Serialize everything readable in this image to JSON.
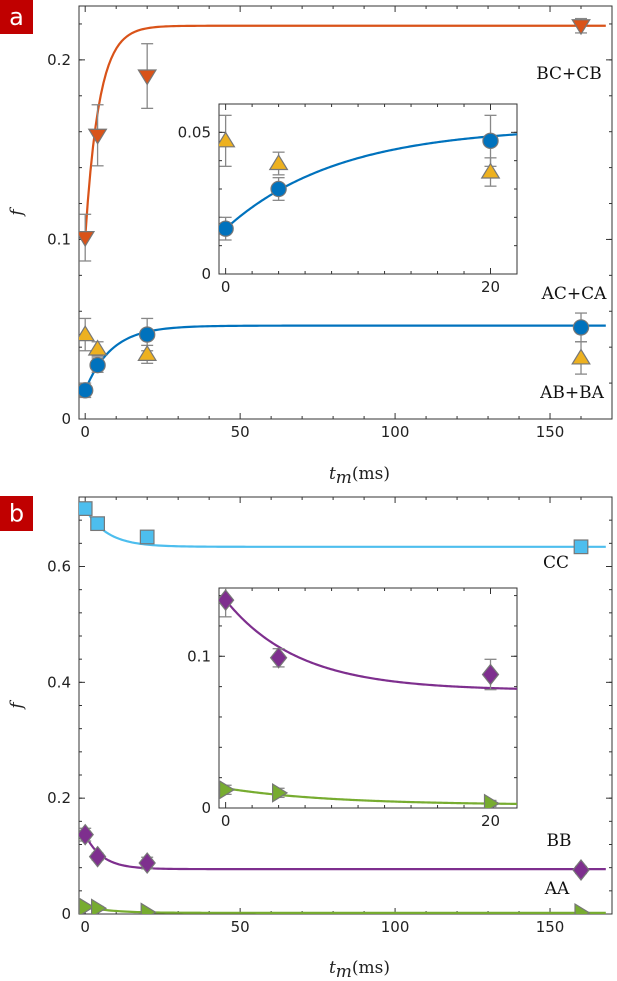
{
  "chart_data": [
    {
      "panel": "a",
      "type": "scatter",
      "xlabel": "t_m",
      "xunit": "(ms)",
      "ylabel": "f",
      "xlim": [
        -2,
        170
      ],
      "ylim": [
        0,
        0.23
      ],
      "xticks": [
        0,
        50,
        100,
        150
      ],
      "yticks": [
        0,
        0.1,
        0.2
      ],
      "ytick_labels": [
        "0",
        "0.1",
        "0.2"
      ],
      "series": [
        {
          "name": "BC+CB",
          "marker": "triangle-down",
          "color": "#D95319",
          "x": [
            0,
            4,
            20,
            160
          ],
          "y": [
            0.101,
            0.158,
            0.191,
            0.219
          ],
          "err": [
            0.013,
            0.017,
            0.018,
            0.004
          ],
          "fit": {
            "a": 0.219,
            "b": 0.118,
            "tau": 4.5
          }
        },
        {
          "name": "AB+BA",
          "marker": "circle",
          "color": "#0072BD",
          "x": [
            0,
            4,
            20,
            160
          ],
          "y": [
            0.016,
            0.03,
            0.047,
            0.051
          ],
          "err": [
            0.004,
            0.004,
            0.009,
            0.008
          ],
          "fit": {
            "a": 0.052,
            "b": 0.036,
            "tau": 8.5
          }
        },
        {
          "name": "AC+CA",
          "marker": "triangle-up",
          "color": "#EDB120",
          "x": [
            0,
            4,
            20,
            160
          ],
          "y": [
            0.047,
            0.039,
            0.036,
            0.034
          ],
          "err": [
            0.009,
            0.004,
            0.005,
            0.009
          ],
          "fit": null
        }
      ],
      "inset": {
        "xlim": [
          -0.5,
          22
        ],
        "ylim": [
          0,
          0.06
        ],
        "xticks": [
          0,
          20
        ],
        "yticks": [
          0,
          0.05
        ],
        "ytick_labels": [
          "0",
          "0.05"
        ],
        "series_names": [
          "AB+BA",
          "AC+CA"
        ]
      }
    },
    {
      "panel": "b",
      "type": "scatter",
      "xlabel": "t_m",
      "xunit": "(ms)",
      "ylabel": "f",
      "xlim": [
        -2,
        170
      ],
      "ylim": [
        0,
        0.72
      ],
      "xticks": [
        0,
        50,
        100,
        150
      ],
      "yticks": [
        0,
        0.2,
        0.4,
        0.6
      ],
      "ytick_labels": [
        "0",
        "0.2",
        "0.4",
        "0.6"
      ],
      "series": [
        {
          "name": "CC",
          "marker": "square",
          "color": "#4DBEEE",
          "x": [
            0,
            4,
            20,
            160
          ],
          "y": [
            0.7,
            0.674,
            0.651,
            0.634
          ],
          "err": [
            0.011,
            0.009,
            0.011,
            0.008
          ],
          "fit": {
            "a": 0.634,
            "b": -0.066,
            "tau": 7
          }
        },
        {
          "name": "BB",
          "marker": "diamond",
          "color": "#7E2F8E",
          "x": [
            0,
            4,
            20,
            160
          ],
          "y": [
            0.137,
            0.099,
            0.088,
            0.076
          ],
          "err": [
            0.011,
            0.006,
            0.01,
            0.006
          ],
          "fit": {
            "a": 0.0775,
            "b": -0.0595,
            "tau": 5.5
          }
        },
        {
          "name": "AA",
          "marker": "triangle-right",
          "color": "#77AC30",
          "x": [
            0,
            4,
            20,
            160
          ],
          "y": [
            0.012,
            0.01,
            0.003,
            0.002
          ],
          "err": [
            0.003,
            0.003,
            0.002,
            0.001
          ],
          "fit": {
            "a": 0.002,
            "b": -0.011,
            "tau": 8
          }
        }
      ],
      "inset": {
        "xlim": [
          -0.5,
          22
        ],
        "ylim": [
          0,
          0.145
        ],
        "xticks": [
          0,
          20
        ],
        "yticks": [
          0,
          0.1
        ],
        "ytick_labels": [
          "0",
          "0.1"
        ],
        "series_names": [
          "BB",
          "AA"
        ]
      }
    }
  ]
}
